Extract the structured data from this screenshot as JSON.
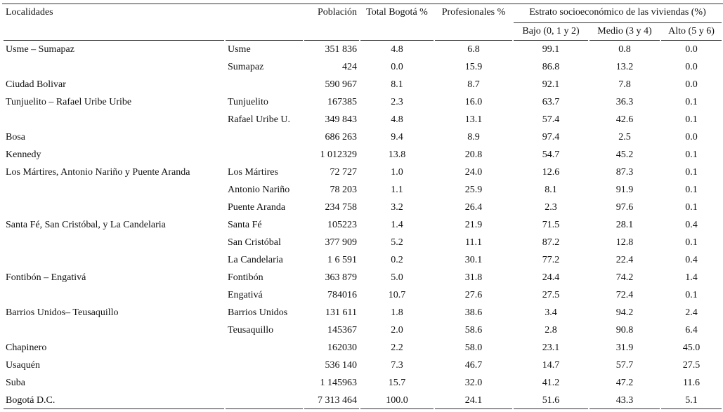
{
  "table": {
    "header": {
      "localidades": "Localidades",
      "poblacion": "Población",
      "total": "Total Bogotá %",
      "profesionales": "Profesionales %",
      "estrato": "Estrato socioeconómico de las viviendas (%)",
      "bajo": "Bajo (0, 1 y 2)",
      "medio": "Medio (3 y 4)",
      "alto": "Alto (5 y 6)"
    },
    "rows": [
      [
        "Usme – Sumapaz",
        "Usme",
        "351 836",
        "4.8",
        "6.8",
        "99.1",
        "0.8",
        "0.0"
      ],
      [
        null,
        "Sumapaz",
        "424",
        "0.0",
        "15.9",
        "86.8",
        "13.2",
        "0.0"
      ],
      [
        "Ciudad Bolivar",
        null,
        "590 967",
        "8.1",
        "8.7",
        "92.1",
        "7.8",
        "0.0"
      ],
      [
        "Tunjuelito – Rafael Uribe Uribe",
        "Tunjuelito",
        "167385",
        "2.3",
        "16.0",
        "63.7",
        "36.3",
        "0.1"
      ],
      [
        null,
        "Rafael Uribe U.",
        "349 843",
        "4.8",
        "13.1",
        "57.4",
        "42.6",
        "0.1"
      ],
      [
        "Bosa",
        null,
        "686 263",
        "9.4",
        "8.9",
        "97.4",
        "2.5",
        "0.0"
      ],
      [
        "Kennedy",
        null,
        "1 012329",
        "13.8",
        "20.8",
        "54.7",
        "45.2",
        "0.1"
      ],
      [
        "Los Mártires, Antonio Nariño y Puente Aranda",
        "Los Mártires",
        "72 727",
        "1.0",
        "24.0",
        "12.6",
        "87.3",
        "0.1"
      ],
      [
        null,
        "Antonio Nariño",
        "78 203",
        "1.1",
        "25.9",
        "8.1",
        "91.9",
        "0.1"
      ],
      [
        null,
        "Puente Aranda",
        "234 758",
        "3.2",
        "26.4",
        "2.3",
        "97.6",
        "0.1"
      ],
      [
        "Santa Fé, San Cristóbal, y La Candelaria",
        "Santa Fé",
        "105223",
        "1.4",
        "21.9",
        "71.5",
        "28.1",
        "0.4"
      ],
      [
        null,
        "San Cristóbal",
        "377 909",
        "5.2",
        "11.1",
        "87.2",
        "12.8",
        "0.1"
      ],
      [
        null,
        "La Candelaria",
        "1 6 591",
        "0.2",
        "30.1",
        "77.2",
        "22.4",
        "0.4"
      ],
      [
        "Fontibón – Engativá",
        "Fontibón",
        "363 879",
        "5.0",
        "31.8",
        "24.4",
        "74.2",
        "1.4"
      ],
      [
        null,
        "Engativá",
        "784016",
        "10.7",
        "27.6",
        "27.5",
        "72.4",
        "0.1"
      ],
      [
        "Barrios Unidos– Teusaquillo",
        "Barrios Unidos",
        "131 611",
        "1.8",
        "38.6",
        "3.4",
        "94.2",
        "2.4"
      ],
      [
        null,
        "Teusaquillo",
        "145367",
        "2.0",
        "58.6",
        "2.8",
        "90.8",
        "6.4"
      ],
      [
        "Chapinero",
        null,
        "162030",
        "2.2",
        "58.0",
        "23.1",
        "31.9",
        "45.0"
      ],
      [
        "Usaquén",
        null,
        "536 140",
        "7.3",
        "46.7",
        "14.7",
        "57.7",
        "27.5"
      ],
      [
        "Suba",
        null,
        "1 145963",
        "15.7",
        "32.0",
        "41.2",
        "47.2",
        "11.6"
      ],
      [
        "Bogotá D.C.",
        null,
        "7 313 464",
        "100.0",
        "24.1",
        "51.6",
        "43.3",
        "5.1"
      ]
    ]
  }
}
